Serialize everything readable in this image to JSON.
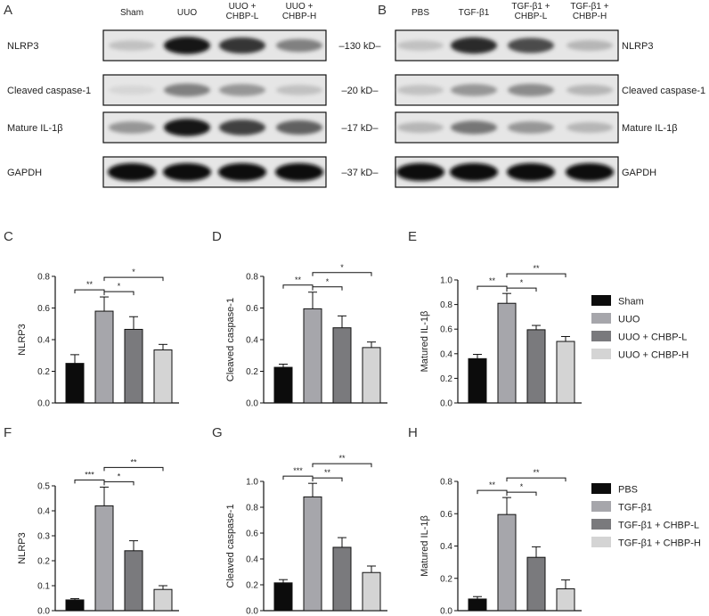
{
  "panel_letters": {
    "A": "A",
    "B": "B",
    "C": "C",
    "D": "D",
    "E": "E",
    "F": "F",
    "G": "G",
    "H": "H"
  },
  "blot_A": {
    "headers": [
      "Sham",
      "UUO",
      "UUO +\nCHBP-L",
      "UUO +\nCHBP-H"
    ],
    "rows": [
      {
        "label": "NLRP3",
        "kd": "–130 kD–",
        "intensity": [
          0.15,
          0.95,
          0.8,
          0.45
        ]
      },
      {
        "label": "Cleaved caspase-1",
        "kd": "–20 kD–",
        "intensity": [
          0.05,
          0.45,
          0.35,
          0.15
        ]
      },
      {
        "label": "Mature IL-1β",
        "kd": "–17 kD–",
        "intensity": [
          0.35,
          0.95,
          0.75,
          0.6
        ]
      },
      {
        "label": "GAPDH",
        "kd": "–37 kD–",
        "intensity": [
          1,
          1,
          1,
          1
        ]
      }
    ]
  },
  "blot_B": {
    "headers": [
      "PBS",
      "TGF-β1",
      "TGF-β1 +\nCHBP-L",
      "TGF-β1 +\nCHBP-H"
    ],
    "rows": [
      {
        "label": "NLRP3",
        "intensity": [
          0.15,
          0.85,
          0.7,
          0.2
        ]
      },
      {
        "label": "Cleaved caspase-1",
        "intensity": [
          0.15,
          0.35,
          0.4,
          0.2
        ]
      },
      {
        "label": "Mature IL-1β",
        "intensity": [
          0.2,
          0.5,
          0.35,
          0.2
        ]
      },
      {
        "label": "GAPDH",
        "intensity": [
          1,
          1,
          1,
          1
        ]
      }
    ]
  },
  "colors": {
    "c1": "#0c0c0c",
    "c2": "#a6a6ab",
    "c3": "#7a7a7d",
    "c4": "#d4d4d4"
  },
  "legend_top": [
    "Sham",
    "UUO",
    "UUO + CHBP-L",
    "UUO + CHBP-H"
  ],
  "legend_bottom": [
    "PBS",
    "TGF-β1",
    "TGF-β1 + CHBP-L",
    "TGF-β1 + CHBP-H"
  ],
  "chart_data": [
    {
      "panel": "C",
      "type": "bar",
      "ylabel": "NLRP3",
      "ylim": [
        0,
        0.8
      ],
      "yticks": [
        "0.0",
        "0.2",
        "0.4",
        "0.6",
        "0.8"
      ],
      "values": [
        0.25,
        0.58,
        0.465,
        0.335
      ],
      "errors": [
        0.055,
        0.09,
        0.08,
        0.035
      ],
      "significance": [
        {
          "from": 0,
          "to": 1,
          "label": "**"
        },
        {
          "from": 1,
          "to": 2,
          "label": "*"
        },
        {
          "from": 1,
          "to": 3,
          "label": "*"
        }
      ]
    },
    {
      "panel": "D",
      "type": "bar",
      "ylabel": "Cleaved caspase-1",
      "ylim": [
        0,
        0.8
      ],
      "yticks": [
        "0.0",
        "0.2",
        "0.4",
        "0.6",
        "0.8"
      ],
      "values": [
        0.225,
        0.595,
        0.475,
        0.35
      ],
      "errors": [
        0.02,
        0.105,
        0.075,
        0.035
      ],
      "significance": [
        {
          "from": 0,
          "to": 1,
          "label": "**"
        },
        {
          "from": 1,
          "to": 2,
          "label": "*"
        },
        {
          "from": 1,
          "to": 3,
          "label": "*"
        }
      ]
    },
    {
      "panel": "E",
      "type": "bar",
      "ylabel": "Matured IL-1β",
      "ylim": [
        0,
        1.0
      ],
      "yticks": [
        "0.0",
        "0.2",
        "0.4",
        "0.6",
        "0.8",
        "1.0"
      ],
      "values": [
        0.36,
        0.81,
        0.595,
        0.5
      ],
      "errors": [
        0.035,
        0.08,
        0.035,
        0.04
      ],
      "significance": [
        {
          "from": 0,
          "to": 1,
          "label": "**"
        },
        {
          "from": 1,
          "to": 2,
          "label": "*"
        },
        {
          "from": 1,
          "to": 3,
          "label": "**"
        }
      ]
    },
    {
      "panel": "F",
      "type": "bar",
      "ylabel": "NLRP3",
      "ylim": [
        0,
        0.5
      ],
      "yticks": [
        "0.0",
        "0.1",
        "0.2",
        "0.3",
        "0.4",
        "0.5"
      ],
      "values": [
        0.043,
        0.42,
        0.24,
        0.085
      ],
      "errors": [
        0.005,
        0.075,
        0.04,
        0.015
      ],
      "significance": [
        {
          "from": 0,
          "to": 1,
          "label": "***"
        },
        {
          "from": 1,
          "to": 2,
          "label": "*"
        },
        {
          "from": 1,
          "to": 3,
          "label": "**"
        }
      ]
    },
    {
      "panel": "G",
      "type": "bar",
      "ylabel": "Cleaved caspase-1",
      "ylim": [
        0,
        1.0
      ],
      "yticks": [
        "0.0",
        "0.2",
        "0.4",
        "0.6",
        "0.8",
        "1.0"
      ],
      "values": [
        0.215,
        0.88,
        0.49,
        0.295
      ],
      "errors": [
        0.025,
        0.105,
        0.075,
        0.05
      ],
      "significance": [
        {
          "from": 0,
          "to": 1,
          "label": "***"
        },
        {
          "from": 1,
          "to": 2,
          "label": "**"
        },
        {
          "from": 1,
          "to": 3,
          "label": "**"
        }
      ]
    },
    {
      "panel": "H",
      "type": "bar",
      "ylabel": "Matured IL-1β",
      "ylim": [
        0,
        0.8
      ],
      "yticks": [
        "0.0",
        "0.2",
        "0.4",
        "0.6",
        "0.8"
      ],
      "values": [
        0.072,
        0.595,
        0.33,
        0.135
      ],
      "errors": [
        0.015,
        0.105,
        0.065,
        0.055
      ],
      "significance": [
        {
          "from": 0,
          "to": 1,
          "label": "**"
        },
        {
          "from": 1,
          "to": 2,
          "label": "*"
        },
        {
          "from": 1,
          "to": 3,
          "label": "**"
        }
      ]
    }
  ]
}
